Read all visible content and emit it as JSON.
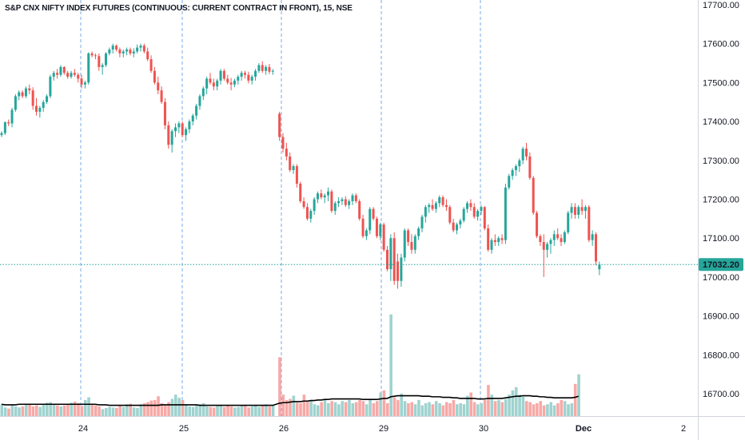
{
  "chart_data": {
    "type": "candlestick",
    "title": "S&P CNX NIFTY INDEX FUTURES (CONTINUOUS: CURRENT CONTRACT IN FRONT), 15, NSE",
    "y_ticks": [
      "17700.00",
      "17600.00",
      "17500.00",
      "17400.00",
      "17300.00",
      "17200.00",
      "17100.00",
      "17000.00",
      "16900.00",
      "16800.00",
      "16700.00"
    ],
    "y_tick_values": [
      17700,
      17600,
      17500,
      17400,
      17300,
      17200,
      17100,
      17000,
      16900,
      16800,
      16700
    ],
    "ylim": [
      16650,
      17720
    ],
    "x_tick_labels": [
      "24",
      "25",
      "26",
      "29",
      "30",
      "Dec",
      "2"
    ],
    "day_separator_labels": [
      "24",
      "25",
      "26",
      "29",
      "30"
    ],
    "last_price": 17032.2,
    "last_price_label": "17032.20",
    "colors": {
      "up": "#26a69a",
      "down": "#ef5350",
      "up_volume": "#9fd3cf",
      "down_volume": "#f7a9a7",
      "ma": "#000000",
      "grid_separator": "#4a90e2"
    },
    "candles": [
      [
        17365,
        17375,
        17360,
        17370
      ],
      [
        17370,
        17400,
        17365,
        17398
      ],
      [
        17398,
        17405,
        17388,
        17395
      ],
      [
        17395,
        17435,
        17385,
        17430
      ],
      [
        17430,
        17470,
        17425,
        17465
      ],
      [
        17465,
        17480,
        17455,
        17475
      ],
      [
        17475,
        17480,
        17460,
        17465
      ],
      [
        17465,
        17490,
        17460,
        17485
      ],
      [
        17485,
        17495,
        17470,
        17480
      ],
      [
        17480,
        17488,
        17430,
        17440
      ],
      [
        17440,
        17460,
        17415,
        17425
      ],
      [
        17425,
        17440,
        17410,
        17435
      ],
      [
        17435,
        17455,
        17425,
        17450
      ],
      [
        17450,
        17470,
        17445,
        17465
      ],
      [
        17465,
        17520,
        17460,
        17515
      ],
      [
        17515,
        17530,
        17505,
        17525
      ],
      [
        17525,
        17535,
        17510,
        17520
      ],
      [
        17520,
        17545,
        17515,
        17540
      ],
      [
        17540,
        17542,
        17520,
        17525
      ],
      [
        17525,
        17530,
        17510,
        17515
      ],
      [
        17515,
        17530,
        17510,
        17525
      ],
      [
        17525,
        17535,
        17515,
        17520
      ],
      [
        17520,
        17525,
        17500,
        17510
      ],
      [
        17510,
        17520,
        17485,
        17495
      ],
      [
        17495,
        17505,
        17485,
        17500
      ],
      [
        17500,
        17578,
        17495,
        17575
      ],
      [
        17575,
        17580,
        17565,
        17570
      ],
      [
        17570,
        17575,
        17560,
        17568
      ],
      [
        17568,
        17575,
        17530,
        17540
      ],
      [
        17540,
        17550,
        17520,
        17545
      ],
      [
        17545,
        17578,
        17540,
        17575
      ],
      [
        17575,
        17590,
        17570,
        17585
      ],
      [
        17585,
        17600,
        17575,
        17595
      ],
      [
        17595,
        17598,
        17580,
        17585
      ],
      [
        17585,
        17590,
        17565,
        17575
      ],
      [
        17575,
        17585,
        17565,
        17580
      ],
      [
        17580,
        17590,
        17570,
        17585
      ],
      [
        17585,
        17590,
        17570,
        17575
      ],
      [
        17575,
        17588,
        17565,
        17580
      ],
      [
        17580,
        17598,
        17575,
        17590
      ],
      [
        17590,
        17600,
        17580,
        17595
      ],
      [
        17595,
        17600,
        17575,
        17580
      ],
      [
        17580,
        17590,
        17555,
        17560
      ],
      [
        17560,
        17570,
        17525,
        17530
      ],
      [
        17530,
        17540,
        17495,
        17500
      ],
      [
        17500,
        17515,
        17470,
        17480
      ],
      [
        17480,
        17490,
        17445,
        17450
      ],
      [
        17450,
        17460,
        17380,
        17390
      ],
      [
        17390,
        17400,
        17330,
        17340
      ],
      [
        17340,
        17380,
        17320,
        17375
      ],
      [
        17375,
        17395,
        17360,
        17385
      ],
      [
        17385,
        17400,
        17370,
        17395
      ],
      [
        17395,
        17400,
        17360,
        17365
      ],
      [
        17365,
        17385,
        17350,
        17380
      ],
      [
        17380,
        17405,
        17370,
        17400
      ],
      [
        17400,
        17420,
        17390,
        17415
      ],
      [
        17415,
        17445,
        17405,
        17440
      ],
      [
        17440,
        17470,
        17430,
        17465
      ],
      [
        17465,
        17490,
        17455,
        17485
      ],
      [
        17485,
        17515,
        17470,
        17510
      ],
      [
        17510,
        17525,
        17495,
        17500
      ],
      [
        17500,
        17510,
        17480,
        17490
      ],
      [
        17490,
        17510,
        17480,
        17505
      ],
      [
        17505,
        17535,
        17495,
        17530
      ],
      [
        17530,
        17535,
        17505,
        17510
      ],
      [
        17510,
        17520,
        17495,
        17500
      ],
      [
        17500,
        17512,
        17480,
        17495
      ],
      [
        17495,
        17510,
        17488,
        17505
      ],
      [
        17505,
        17520,
        17495,
        17515
      ],
      [
        17515,
        17530,
        17505,
        17525
      ],
      [
        17525,
        17530,
        17510,
        17520
      ],
      [
        17520,
        17528,
        17498,
        17505
      ],
      [
        17505,
        17520,
        17495,
        17515
      ],
      [
        17515,
        17535,
        17505,
        17530
      ],
      [
        17530,
        17550,
        17525,
        17545
      ],
      [
        17545,
        17555,
        17525,
        17530
      ],
      [
        17530,
        17545,
        17520,
        17540
      ],
      [
        17540,
        17548,
        17522,
        17528
      ],
      [
        17528,
        17535,
        17520,
        17530
      ],
      [
        17420,
        17425,
        17350,
        17360
      ],
      [
        17360,
        17370,
        17320,
        17330
      ],
      [
        17330,
        17345,
        17300,
        17310
      ],
      [
        17310,
        17320,
        17270,
        17275
      ],
      [
        17275,
        17290,
        17265,
        17285
      ],
      [
        17285,
        17290,
        17230,
        17240
      ],
      [
        17240,
        17245,
        17190,
        17195
      ],
      [
        17195,
        17205,
        17175,
        17180
      ],
      [
        17180,
        17190,
        17145,
        17150
      ],
      [
        17150,
        17175,
        17140,
        17170
      ],
      [
        17170,
        17205,
        17160,
        17200
      ],
      [
        17200,
        17220,
        17190,
        17215
      ],
      [
        17215,
        17225,
        17200,
        17205
      ],
      [
        17205,
        17215,
        17190,
        17210
      ],
      [
        17210,
        17230,
        17195,
        17220
      ],
      [
        17220,
        17225,
        17165,
        17170
      ],
      [
        17170,
        17195,
        17160,
        17190
      ],
      [
        17190,
        17205,
        17180,
        17195
      ],
      [
        17195,
        17205,
        17185,
        17200
      ],
      [
        17200,
        17208,
        17180,
        17185
      ],
      [
        17185,
        17200,
        17175,
        17195
      ],
      [
        17195,
        17215,
        17185,
        17210
      ],
      [
        17210,
        17215,
        17190,
        17195
      ],
      [
        17195,
        17200,
        17145,
        17150
      ],
      [
        17150,
        17160,
        17100,
        17105
      ],
      [
        17105,
        17125,
        17095,
        17120
      ],
      [
        17120,
        17180,
        17110,
        17175
      ],
      [
        17175,
        17180,
        17145,
        17150
      ],
      [
        17150,
        17155,
        17100,
        17105
      ],
      [
        17105,
        17140,
        17095,
        17135
      ],
      [
        17135,
        17140,
        17065,
        17070
      ],
      [
        17070,
        17080,
        17015,
        17020
      ],
      [
        17020,
        17110,
        16990,
        17100
      ],
      [
        17100,
        17115,
        16980,
        16990
      ],
      [
        17040,
        17060,
        16970,
        16990
      ],
      [
        16990,
        17060,
        16975,
        17050
      ],
      [
        17050,
        17125,
        17040,
        17120
      ],
      [
        17120,
        17125,
        17080,
        17090
      ],
      [
        17090,
        17110,
        17060,
        17070
      ],
      [
        17070,
        17110,
        17060,
        17105
      ],
      [
        17105,
        17130,
        17095,
        17125
      ],
      [
        17125,
        17160,
        17115,
        17155
      ],
      [
        17155,
        17185,
        17140,
        17180
      ],
      [
        17180,
        17190,
        17165,
        17185
      ],
      [
        17185,
        17200,
        17170,
        17175
      ],
      [
        17175,
        17195,
        17165,
        17190
      ],
      [
        17190,
        17210,
        17180,
        17205
      ],
      [
        17205,
        17210,
        17180,
        17185
      ],
      [
        17185,
        17200,
        17170,
        17180
      ],
      [
        17180,
        17185,
        17135,
        17140
      ],
      [
        17140,
        17150,
        17115,
        17120
      ],
      [
        17120,
        17140,
        17110,
        17135
      ],
      [
        17135,
        17150,
        17125,
        17145
      ],
      [
        17145,
        17180,
        17140,
        17175
      ],
      [
        17175,
        17195,
        17165,
        17190
      ],
      [
        17190,
        17200,
        17170,
        17180
      ],
      [
        17180,
        17190,
        17150,
        17155
      ],
      [
        17155,
        17175,
        17145,
        17170
      ],
      [
        17170,
        17185,
        17160,
        17180
      ],
      [
        17180,
        17182,
        17120,
        17125
      ],
      [
        17125,
        17135,
        17065,
        17070
      ],
      [
        17070,
        17100,
        17060,
        17095
      ],
      [
        17095,
        17110,
        17080,
        17090
      ],
      [
        17090,
        17105,
        17080,
        17100
      ],
      [
        17100,
        17110,
        17085,
        17095
      ],
      [
        17095,
        17240,
        17085,
        17230
      ],
      [
        17230,
        17265,
        17225,
        17260
      ],
      [
        17260,
        17280,
        17250,
        17275
      ],
      [
        17275,
        17290,
        17260,
        17285
      ],
      [
        17285,
        17305,
        17270,
        17300
      ],
      [
        17300,
        17335,
        17290,
        17330
      ],
      [
        17330,
        17345,
        17300,
        17310
      ],
      [
        17310,
        17320,
        17250,
        17255
      ],
      [
        17255,
        17260,
        17160,
        17165
      ],
      [
        17165,
        17170,
        17100,
        17105
      ],
      [
        17105,
        17110,
        17080,
        17090
      ],
      [
        17090,
        17110,
        17000,
        17070
      ],
      [
        17070,
        17090,
        17050,
        17085
      ],
      [
        17085,
        17100,
        17060,
        17095
      ],
      [
        17095,
        17120,
        17080,
        17110
      ],
      [
        17110,
        17125,
        17095,
        17100
      ],
      [
        17100,
        17110,
        17080,
        17090
      ],
      [
        17090,
        17120,
        17085,
        17115
      ],
      [
        17115,
        17170,
        17110,
        17165
      ],
      [
        17165,
        17190,
        17150,
        17180
      ],
      [
        17180,
        17190,
        17150,
        17160
      ],
      [
        17160,
        17185,
        17150,
        17180
      ],
      [
        17180,
        17200,
        17160,
        17170
      ],
      [
        17170,
        17185,
        17150,
        17180
      ],
      [
        17180,
        17185,
        17090,
        17095
      ],
      [
        17095,
        17120,
        17080,
        17110
      ],
      [
        17110,
        17115,
        17030,
        17040
      ],
      [
        17020,
        17040,
        17005,
        17032
      ]
    ],
    "volume": [
      22,
      16,
      14,
      20,
      18,
      16,
      18,
      23,
      22,
      18,
      20,
      17,
      21,
      25,
      26,
      22,
      20,
      18,
      20,
      21,
      25,
      27,
      24,
      19,
      30,
      35,
      22,
      20,
      18,
      13,
      15,
      17,
      16,
      15,
      20,
      17,
      22,
      23,
      16,
      15,
      22,
      24,
      26,
      29,
      30,
      37,
      24,
      20,
      26,
      32,
      40,
      34,
      30,
      22,
      18,
      17,
      20,
      22,
      24,
      18,
      17,
      16,
      19,
      21,
      17,
      20,
      18,
      16,
      17,
      19,
      21,
      16,
      18,
      20,
      17,
      19,
      22,
      18,
      20,
      110,
      40,
      30,
      32,
      38,
      25,
      24,
      40,
      28,
      30,
      22,
      20,
      26,
      32,
      24,
      28,
      26,
      22,
      28,
      26,
      30,
      24,
      26,
      30,
      28,
      22,
      32,
      24,
      28,
      44,
      48,
      24,
      190,
      35,
      30,
      42,
      28,
      24,
      26,
      22,
      30,
      20,
      24,
      26,
      22,
      28,
      24,
      20,
      26,
      24,
      30,
      22,
      24,
      22,
      38,
      44,
      26,
      22,
      24,
      30,
      58,
      40,
      28,
      30,
      26,
      32,
      40,
      48,
      54,
      40,
      36,
      28,
      26,
      22,
      24,
      28,
      20,
      22,
      26,
      20,
      24,
      30,
      28,
      22,
      24,
      60,
      78
    ],
    "volume_ma": [
      22,
      21,
      21,
      21,
      21,
      22,
      22,
      22,
      22,
      22,
      22,
      22,
      22,
      22,
      22,
      22,
      22,
      22,
      22,
      22,
      22,
      22,
      22,
      22,
      22,
      22,
      22,
      22,
      21,
      21,
      21,
      20,
      20,
      20,
      20,
      20,
      20,
      20,
      20,
      20,
      20,
      20,
      20,
      20,
      20,
      20,
      21,
      21,
      21,
      21,
      21,
      21,
      21,
      21,
      21,
      21,
      21,
      20,
      20,
      20,
      20,
      20,
      20,
      20,
      20,
      20,
      20,
      20,
      20,
      20,
      20,
      20,
      20,
      20,
      20,
      20,
      20,
      20,
      20,
      24,
      25,
      25,
      26,
      27,
      27,
      27,
      28,
      28,
      29,
      29,
      30,
      30,
      31,
      31,
      32,
      32,
      32,
      32,
      32,
      32,
      32,
      32,
      32,
      31,
      31,
      31,
      31,
      31,
      32,
      33,
      33,
      36,
      37,
      38,
      38,
      38,
      38,
      38,
      38,
      38,
      37,
      37,
      37,
      36,
      36,
      36,
      35,
      35,
      35,
      34,
      34,
      33,
      33,
      33,
      33,
      33,
      32,
      32,
      32,
      33,
      33,
      33,
      33,
      33,
      34,
      35,
      36,
      37,
      37,
      38,
      38,
      38,
      37,
      37,
      36,
      36,
      35,
      35,
      34,
      34,
      34,
      34,
      34,
      34,
      35,
      37
    ]
  }
}
